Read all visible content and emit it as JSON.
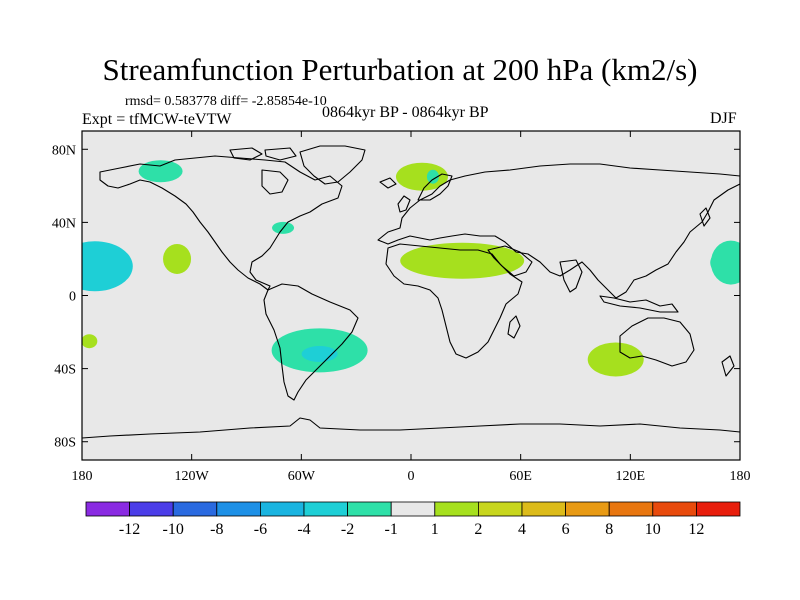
{
  "title": "Streamfunction Perturbation at 200 hPa (km2/s)",
  "stats": "rmsd= 0.583778 diff= -2.85854e-10",
  "experiment": "Expt = tfMCW-teVTW",
  "period": "0864kyr BP - 0864kyr BP",
  "season": "DJF",
  "map": {
    "background_color": "#e8e8e8",
    "lat_ticks": [
      "80N",
      "40N",
      "0",
      "40S",
      "80S"
    ],
    "lon_ticks": [
      "180",
      "120W",
      "60W",
      "0",
      "60E",
      "120E",
      "180"
    ],
    "anomalies": [
      {
        "name": "n-pacific-high",
        "lon": -137,
        "lat": 68,
        "level": -1
      },
      {
        "name": "central-pacific-low",
        "lon": -173,
        "lat": 16,
        "level": -2
      },
      {
        "name": "west-pacific-low",
        "lon": 175,
        "lat": 18,
        "level": -1
      },
      {
        "name": "west-pacific-edge-low",
        "lon": 167,
        "lat": 18,
        "level": -1
      },
      {
        "name": "east-pacific-high",
        "lon": -128,
        "lat": 20,
        "level": 1
      },
      {
        "name": "atlantic-small-low",
        "lon": -70,
        "lat": 37,
        "level": -1
      },
      {
        "name": "europe-high",
        "lon": 6,
        "lat": 65,
        "level": 1
      },
      {
        "name": "europe-center-low",
        "lon": 12,
        "lat": 65,
        "level": -1
      },
      {
        "name": "africa-high",
        "lon": 28,
        "lat": 19,
        "level": 1
      },
      {
        "name": "south-america-low",
        "lon": -50,
        "lat": -30,
        "level": -1
      },
      {
        "name": "south-america-center-low",
        "lon": -50,
        "lat": -32,
        "level": -2
      },
      {
        "name": "australia-high",
        "lon": 112,
        "lat": -35,
        "level": 1
      },
      {
        "name": "south-pacific-high",
        "lon": -176,
        "lat": -25,
        "level": 1
      }
    ]
  },
  "colorbar": {
    "colors": [
      "#8a2be2",
      "#4b3de8",
      "#2a6ae0",
      "#1e90e6",
      "#1ab4e0",
      "#1ecfd6",
      "#2ee0a8",
      "#e8e8e8",
      "#a6e01e",
      "#c8d61e",
      "#dcbb1a",
      "#e89a14",
      "#e8760f",
      "#e84a0c",
      "#e81e0c"
    ],
    "labels": [
      "-12",
      "-10",
      "-8",
      "-6",
      "-4",
      "-2",
      "-1",
      "1",
      "2",
      "4",
      "6",
      "8",
      "10",
      "12"
    ]
  }
}
